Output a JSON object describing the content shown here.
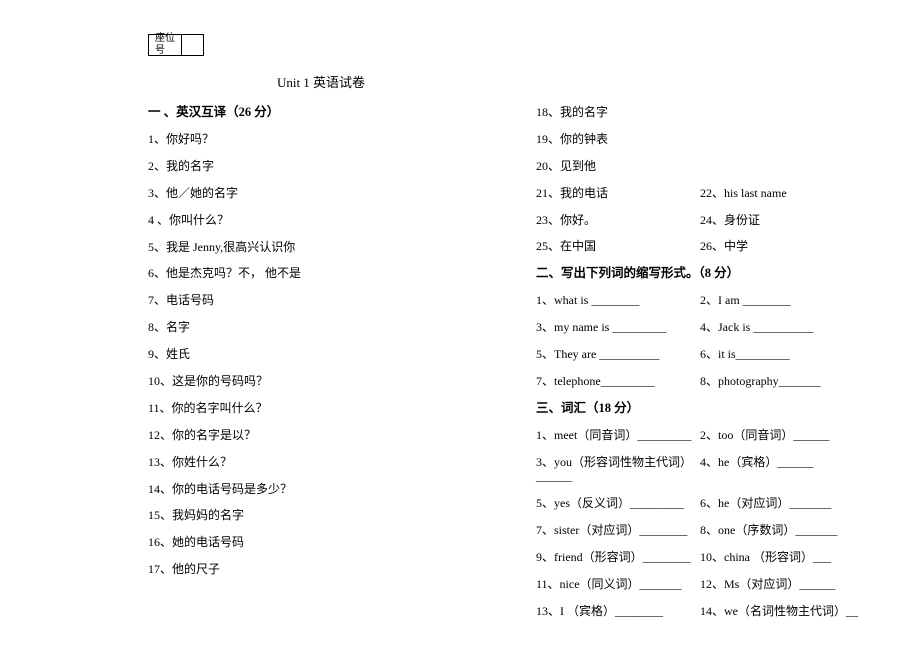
{
  "seat_label": "座位号",
  "title": "Unit 1  英语试卷",
  "section1": {
    "heading": "一 、英汉互译（26 分）",
    "left": [
      "1、你好吗？",
      "2、我的名字",
      "3、他／她的名字",
      "4 、你叫什么？",
      "5、我是 Jenny,很高兴认识你",
      "6、他是杰克吗？不，  他不是",
      "7、电话号码",
      "8、名字",
      "9、姓氏",
      "10、这是你的号码吗？",
      "11、你的名字叫什么？",
      "12、你的名字是以？",
      "13、你姓什么？",
      "14、你的电话号码是多少？",
      "15、我妈妈的名字",
      "16、她的电话号码",
      "17、他的尺子"
    ],
    "right_singles": [
      "18、我的名字",
      "19、你的钟表",
      "20、见到他"
    ],
    "right_pairs": [
      {
        "a": "21、我的电话",
        "b": "22、his last name"
      },
      {
        "a": "23、你好。",
        "b": "24、身份证"
      },
      {
        "a": "25、在中国",
        "b": "26、中学"
      }
    ]
  },
  "section2": {
    "heading": "二、写出下列词的缩写形式。（8 分）",
    "pairs": [
      {
        "a": "1、what is  ________",
        "b": "2、I am   ________"
      },
      {
        "a": "3、my name is  _________",
        "b": "4、Jack is   __________"
      },
      {
        "a": "5、They are   __________",
        "b": "6、it is_________"
      },
      {
        "a": "7、telephone_________",
        "b": "8、photography_______"
      }
    ]
  },
  "section3": {
    "heading": "三、词汇（18 分）",
    "pairs": [
      {
        "a": "1、meet（同音词）_________",
        "b": "2、too（同音词）______"
      },
      {
        "a": "3、you（形容词性物主代词）______",
        "b": "4、he（宾格）______"
      },
      {
        "a": "5、yes（反义词）_________",
        "b": "6、he（对应词）_______"
      },
      {
        "a": "7、sister（对应词）________",
        "b": "8、one（序数词）_______"
      },
      {
        "a": "9、friend（形容词）________",
        "b": "10、china  （形容词）___"
      },
      {
        "a": "11、nice（同义词）_______",
        "b": "12、Ms（对应词）______"
      },
      {
        "a": "13、I （宾格）________",
        "b": "14、we（名词性物主代词）__"
      }
    ]
  }
}
